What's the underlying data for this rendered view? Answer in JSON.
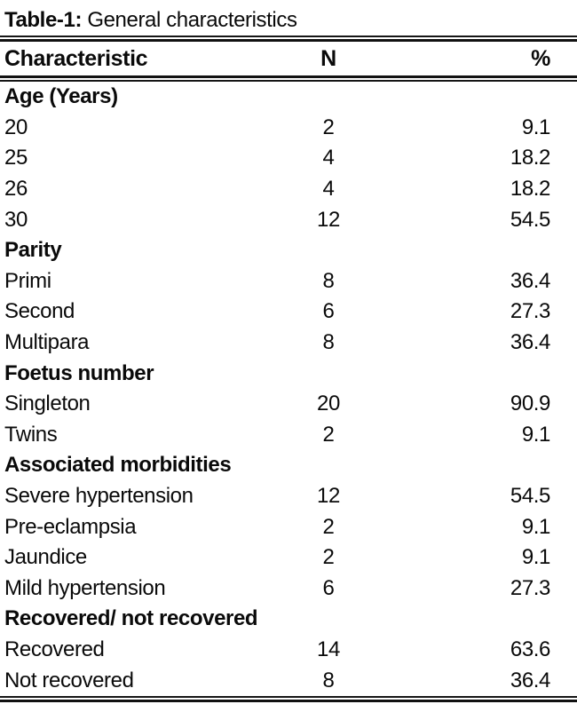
{
  "title": {
    "label": "Table-1:",
    "text": "General characteristics"
  },
  "table": {
    "columns": [
      "Characteristic",
      "N",
      "%"
    ],
    "rows": [
      {
        "label": "Age (Years)",
        "n": "",
        "pct": "",
        "section": true
      },
      {
        "label": "20",
        "n": "2",
        "pct": "9.1",
        "section": false
      },
      {
        "label": "25",
        "n": "4",
        "pct": "18.2",
        "section": false
      },
      {
        "label": "26",
        "n": "4",
        "pct": "18.2",
        "section": false
      },
      {
        "label": "30",
        "n": "12",
        "pct": "54.5",
        "section": false
      },
      {
        "label": "Parity",
        "n": "",
        "pct": "",
        "section": true
      },
      {
        "label": "Primi",
        "n": "8",
        "pct": "36.4",
        "section": false
      },
      {
        "label": "Second",
        "n": "6",
        "pct": "27.3",
        "section": false
      },
      {
        "label": "Multipara",
        "n": "8",
        "pct": "36.4",
        "section": false
      },
      {
        "label": "Foetus number",
        "n": "",
        "pct": "",
        "section": true
      },
      {
        "label": "Singleton",
        "n": "20",
        "pct": "90.9",
        "section": false
      },
      {
        "label": "Twins",
        "n": "2",
        "pct": "9.1",
        "section": false
      },
      {
        "label": "Associated morbidities",
        "n": "",
        "pct": "",
        "section": true
      },
      {
        "label": "Severe hypertension",
        "n": "12",
        "pct": "54.5",
        "section": false
      },
      {
        "label": "Pre-eclampsia",
        "n": "2",
        "pct": "9.1",
        "section": false
      },
      {
        "label": "Jaundice",
        "n": "2",
        "pct": "9.1",
        "section": false
      },
      {
        "label": "Mild hypertension",
        "n": "6",
        "pct": "27.3",
        "section": false
      },
      {
        "label": "Recovered/ not recovered",
        "n": "",
        "pct": "",
        "section": true
      },
      {
        "label": "Recovered",
        "n": "14",
        "pct": "63.6",
        "section": false
      },
      {
        "label": "Not recovered",
        "n": "8",
        "pct": "36.4",
        "section": false
      }
    ]
  },
  "chart_data": {
    "type": "table",
    "title": "Table-1: General characteristics",
    "columns": [
      "Characteristic",
      "N",
      "%"
    ],
    "sections": [
      {
        "name": "Age (Years)",
        "rows": [
          [
            "20",
            2,
            9.1
          ],
          [
            "25",
            4,
            18.2
          ],
          [
            "26",
            4,
            18.2
          ],
          [
            "30",
            12,
            54.5
          ]
        ]
      },
      {
        "name": "Parity",
        "rows": [
          [
            "Primi",
            8,
            36.4
          ],
          [
            "Second",
            6,
            27.3
          ],
          [
            "Multipara",
            8,
            36.4
          ]
        ]
      },
      {
        "name": "Foetus number",
        "rows": [
          [
            "Singleton",
            20,
            90.9
          ],
          [
            "Twins",
            2,
            9.1
          ]
        ]
      },
      {
        "name": "Associated morbidities",
        "rows": [
          [
            "Severe hypertension",
            12,
            54.5
          ],
          [
            "Pre-eclampsia",
            2,
            9.1
          ],
          [
            "Jaundice",
            2,
            9.1
          ],
          [
            "Mild hypertension",
            6,
            27.3
          ]
        ]
      },
      {
        "name": "Recovered/ not recovered",
        "rows": [
          [
            "Recovered",
            14,
            63.6
          ],
          [
            "Not recovered",
            8,
            36.4
          ]
        ]
      }
    ]
  },
  "colors": {
    "text": "#0a0a0a",
    "rule": "#111111",
    "background": "#ffffff"
  }
}
